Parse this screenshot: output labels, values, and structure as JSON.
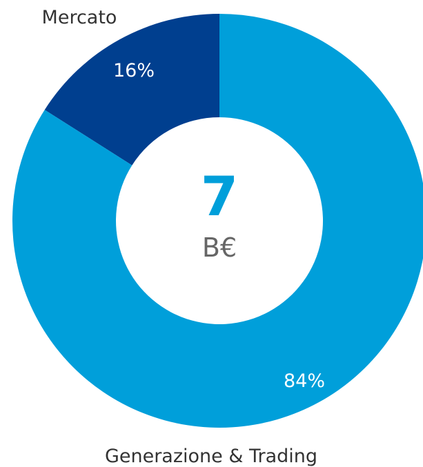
{
  "chart_data": {
    "type": "pie",
    "variant": "donut",
    "slices": [
      {
        "label": "Mercato",
        "value": 16,
        "value_label": "16%",
        "color": "#003F8F"
      },
      {
        "label": "Generazione & Trading",
        "value": 84,
        "value_label": "84%",
        "color": "#009FDA"
      }
    ],
    "center_value": "7",
    "center_unit": "B€",
    "center_value_color": "#009FDA"
  }
}
